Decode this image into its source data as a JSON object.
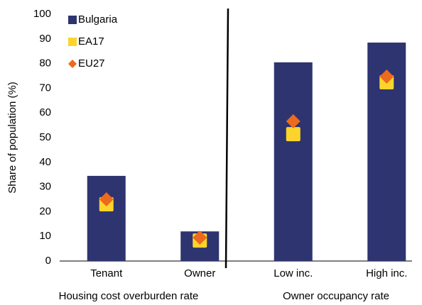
{
  "chart_data": {
    "type": "bar",
    "y_label": "Share of population (%)",
    "categories": [
      "Tenant",
      "Owner",
      "Low inc.",
      "High inc."
    ],
    "group_labels": [
      "Housing cost overburden rate",
      "Owner occupancy rate"
    ],
    "series": [
      {
        "name": "Bulgaria",
        "color": "#2e3470",
        "marker": "bar",
        "values": [
          34.5,
          12,
          80.5,
          88.5
        ]
      },
      {
        "name": "EA17",
        "color": "#fdd42b",
        "marker": "square",
        "values": [
          23,
          8.3,
          51.4,
          72.4
        ]
      },
      {
        "name": "EU27",
        "color": "#ec6a1c",
        "marker": "diamond",
        "values": [
          25,
          9.5,
          56.6,
          74.7
        ]
      }
    ],
    "ylim": [
      0,
      100
    ],
    "yticks": [
      0,
      10,
      20,
      30,
      40,
      50,
      60,
      70,
      80,
      90,
      100
    ],
    "grid": false
  }
}
